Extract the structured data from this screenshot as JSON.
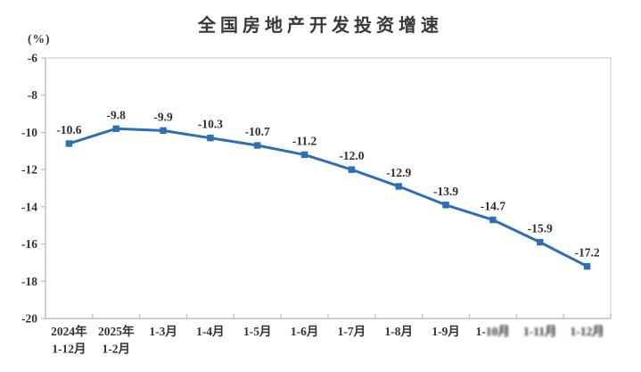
{
  "header": {
    "title": "全国房地产开发投资增速"
  },
  "colors": {
    "line": "#2D6FB5",
    "plot_border": "#D9D9D9",
    "axis": "#BDBDBD",
    "text": "#333333",
    "blurred_text": "#8C8C8C"
  },
  "chart_data": {
    "type": "line",
    "title": "全国房地产开发投资增速",
    "unit_label": "(%)",
    "xlabel": "",
    "ylabel": "(%)",
    "ylim": [
      -20,
      -6
    ],
    "yticks": [
      -6,
      -8,
      -10,
      -12,
      -14,
      -16,
      -18,
      -20
    ],
    "grid": false,
    "legend": "none",
    "marker": "square",
    "line_color": "#2D6FB5",
    "categories": [
      {
        "lines": [
          "2024年",
          "1-12月"
        ],
        "blur": "none"
      },
      {
        "lines": [
          "2025年",
          "1-2月"
        ],
        "blur": "none"
      },
      {
        "lines": [
          "1-3月"
        ],
        "blur": "none"
      },
      {
        "lines": [
          "1-4月"
        ],
        "blur": "none"
      },
      {
        "lines": [
          "1-5月"
        ],
        "blur": "none"
      },
      {
        "lines": [
          "1-6月"
        ],
        "blur": "none"
      },
      {
        "lines": [
          "1-7月"
        ],
        "blur": "none"
      },
      {
        "lines": [
          "1-8月"
        ],
        "blur": "none"
      },
      {
        "lines": [
          "1-9月"
        ],
        "blur": "none"
      },
      {
        "lines": [
          "1-10月"
        ],
        "blur": "partial",
        "sharp_prefix": "1-",
        "blurred_part": "10月"
      },
      {
        "lines": [
          "1-11月"
        ],
        "blur": "full"
      },
      {
        "lines": [
          "1-12月"
        ],
        "blur": "full"
      }
    ],
    "values": [
      -10.6,
      -9.8,
      -9.9,
      -10.3,
      -10.7,
      -11.2,
      -12.0,
      -12.9,
      -13.9,
      -14.7,
      -15.9,
      -17.2
    ],
    "value_labels": [
      "-10.6",
      "-9.8",
      "-9.9",
      "-10.3",
      "-10.7",
      "-11.2",
      "-12.0",
      "-12.9",
      "-13.9",
      "-14.7",
      "-15.9",
      "-17.2"
    ]
  }
}
